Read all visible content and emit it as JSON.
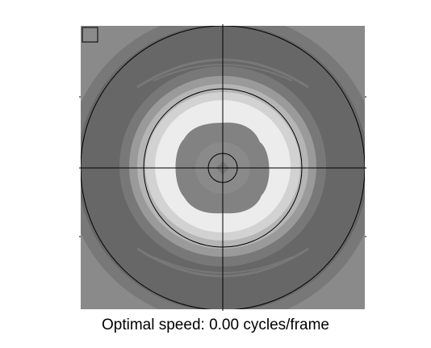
{
  "caption": {
    "label": "Optimal speed:",
    "value": "0.00",
    "unit": "cycles/frame"
  },
  "plot": {
    "icon": "corner-box-icon",
    "colors": {
      "background": "#ffffff",
      "outer_field": "#8a8a8a",
      "dark_ring": "#676767",
      "mid_band": "#787878",
      "light_ring_1": "#9a9a9a",
      "light_ring_2": "#b5b5b5",
      "light_ring_3": "#d2d2d2",
      "bright_ring": "#ececec",
      "center_fill": "#828282",
      "lines": "#000000"
    }
  }
}
